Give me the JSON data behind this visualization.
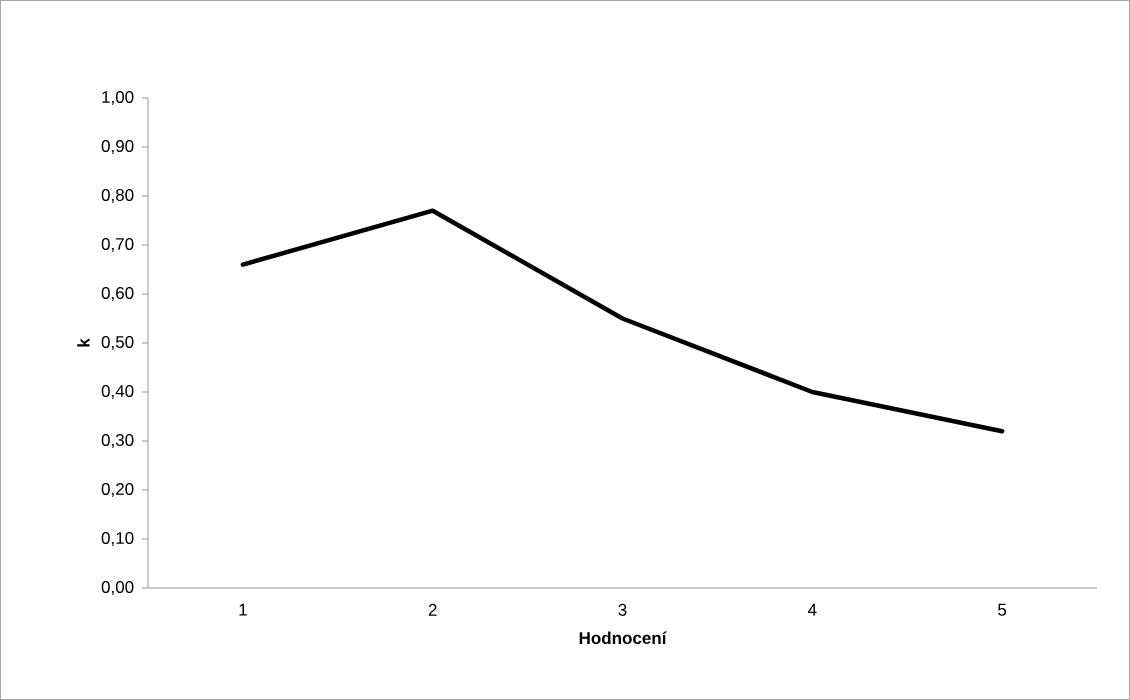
{
  "chart_data": {
    "type": "line",
    "xlabel": "Hodnocení",
    "ylabel": "k",
    "categories": [
      "1",
      "2",
      "3",
      "4",
      "5"
    ],
    "series": [
      {
        "color": "#000000",
        "values": [
          0.66,
          0.77,
          0.55,
          0.4,
          0.32
        ]
      }
    ],
    "ylim": [
      0,
      1
    ],
    "yticks": [
      {
        "value": 0,
        "label": "0,00"
      },
      {
        "value": 0.1,
        "label": "0,10"
      },
      {
        "value": 0.2,
        "label": "0,20"
      },
      {
        "value": 0.3,
        "label": "0,30"
      },
      {
        "value": 0.4,
        "label": "0,40"
      },
      {
        "value": 0.5,
        "label": "0,50"
      },
      {
        "value": 0.6,
        "label": "0,60"
      },
      {
        "value": 0.7,
        "label": "0,70"
      },
      {
        "value": 0.8,
        "label": "0,80"
      },
      {
        "value": 0.9,
        "label": "0,90"
      },
      {
        "value": 1,
        "label": "1,00"
      }
    ],
    "grid": false,
    "legend": false,
    "marker": "none",
    "line_style": "solid"
  }
}
